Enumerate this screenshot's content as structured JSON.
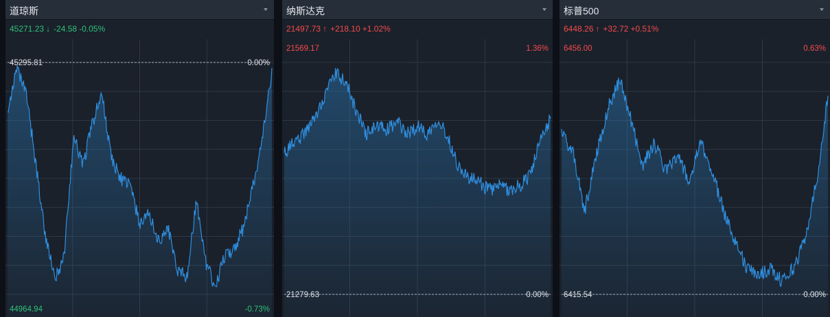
{
  "panels": [
    {
      "title": "道琼斯",
      "quote": {
        "price": "45271.23",
        "arrow": "↓",
        "change": "-24.58",
        "pct": "-0.05%"
      },
      "direction": "down",
      "scale": {
        "high": "45295.81",
        "low": "44964.94",
        "high_pct": "0.00%",
        "low_pct": "-0.73%"
      },
      "chart_data": {
        "type": "area",
        "y_range": [
          44964.94,
          45295.81
        ],
        "prev_close": 45295.81,
        "anchors": [
          45230,
          45285,
          45250,
          45150,
          45050,
          44985,
          45020,
          45190,
          45150,
          45210,
          45250,
          45160,
          45130,
          45120,
          45065,
          45080,
          45040,
          45060,
          45000,
          44990,
          45100,
          45010,
          44975,
          45020,
          45030,
          45060,
          45120,
          45185,
          45283
        ]
      }
    },
    {
      "title": "纳斯达克",
      "quote": {
        "price": "21497.73",
        "arrow": "↑",
        "change": "+218.10",
        "pct": "+1.02%"
      },
      "direction": "up",
      "scale": {
        "high": "21569.17",
        "low": "21279.63",
        "high_pct": "1.36%",
        "low_pct": "0.00%"
      },
      "chart_data": {
        "type": "area",
        "y_range": [
          21279.63,
          21569.17
        ],
        "prev_close": 21279.63,
        "anchors": [
          21455,
          21470,
          21480,
          21500,
          21530,
          21555,
          21545,
          21510,
          21480,
          21490,
          21485,
          21495,
          21480,
          21490,
          21480,
          21500,
          21475,
          21440,
          21425,
          21420,
          21410,
          21415,
          21410,
          21415,
          21430,
          21470,
          21500
        ]
      }
    },
    {
      "title": "标普500",
      "quote": {
        "price": "6448.26",
        "arrow": "↑",
        "change": "+32.72",
        "pct": "+0.51%"
      },
      "direction": "up",
      "scale": {
        "high": "6456.00",
        "low": "6415.54",
        "high_pct": "0.63%",
        "low_pct": "0.00%"
      },
      "chart_data": {
        "type": "area",
        "y_range": [
          6415.54,
          6456.0
        ],
        "prev_close": 6415.54,
        "anchors": [
          6444,
          6440,
          6430,
          6440,
          6448,
          6453,
          6446,
          6438,
          6442,
          6437,
          6440,
          6435,
          6442,
          6437,
          6430,
          6425,
          6420,
          6419,
          6420,
          6418,
          6420,
          6425,
          6435,
          6450
        ]
      }
    }
  ],
  "colors": {
    "up": "#f24b4b",
    "down": "#2ec078",
    "line": "#2f8fe0",
    "grid": "#2e3846",
    "label": "#dfe3e8"
  }
}
